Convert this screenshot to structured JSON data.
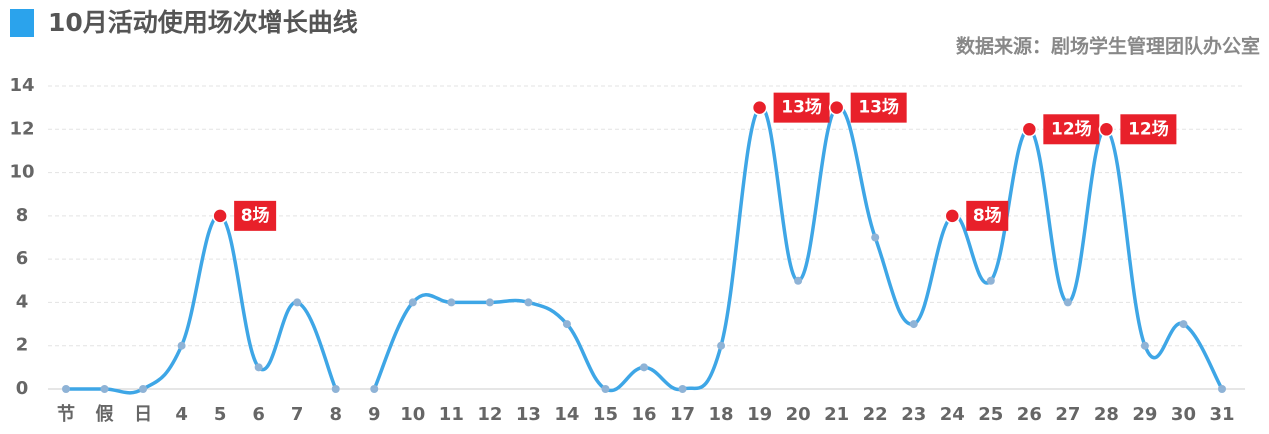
{
  "chart_data": {
    "type": "line",
    "title": "10月活动使用场次增长曲线",
    "source": "数据来源：剧场学生管理团队办公室",
    "categories": [
      "节",
      "假",
      "日",
      "4",
      "5",
      "6",
      "7",
      "8",
      "9",
      "10",
      "11",
      "12",
      "13",
      "14",
      "15",
      "16",
      "17",
      "18",
      "19",
      "20",
      "21",
      "22",
      "23",
      "24",
      "25",
      "26",
      "27",
      "28",
      "29",
      "30",
      "31"
    ],
    "series": [
      {
        "color": "#3ea6e6",
        "values": [
          0,
          0,
          0,
          2,
          8,
          1,
          4,
          0,
          null,
          null,
          null,
          null,
          null,
          null,
          null,
          null,
          null,
          null,
          null,
          null,
          null,
          null,
          null,
          null,
          null,
          null,
          null,
          null,
          null,
          null,
          null
        ],
        "value_labels": [
          null,
          null,
          null,
          null,
          "8场",
          null,
          null,
          null,
          null,
          null,
          null,
          null,
          null,
          null,
          null,
          null,
          null,
          null,
          null,
          null,
          null,
          null,
          null,
          null,
          null,
          null,
          null,
          null,
          null,
          null,
          null
        ]
      },
      {
        "color": "#3ea6e6",
        "values": [
          null,
          null,
          null,
          null,
          null,
          null,
          null,
          null,
          0,
          4,
          4,
          4,
          4,
          3,
          0,
          1,
          0,
          2,
          13,
          5,
          13,
          7,
          3,
          8,
          5,
          12,
          4,
          12,
          2,
          3,
          0
        ],
        "value_labels": [
          null,
          null,
          null,
          null,
          null,
          null,
          null,
          null,
          null,
          null,
          null,
          null,
          null,
          null,
          null,
          null,
          null,
          null,
          "13场",
          null,
          "13场",
          null,
          null,
          "8场",
          null,
          "12场",
          null,
          "12场",
          null,
          null,
          null
        ]
      }
    ],
    "highlight_color": "#e8202a",
    "ylim": [
      0,
      14
    ],
    "yticks": [
      0,
      2,
      4,
      6,
      8,
      10,
      12,
      14
    ],
    "grid": true
  }
}
